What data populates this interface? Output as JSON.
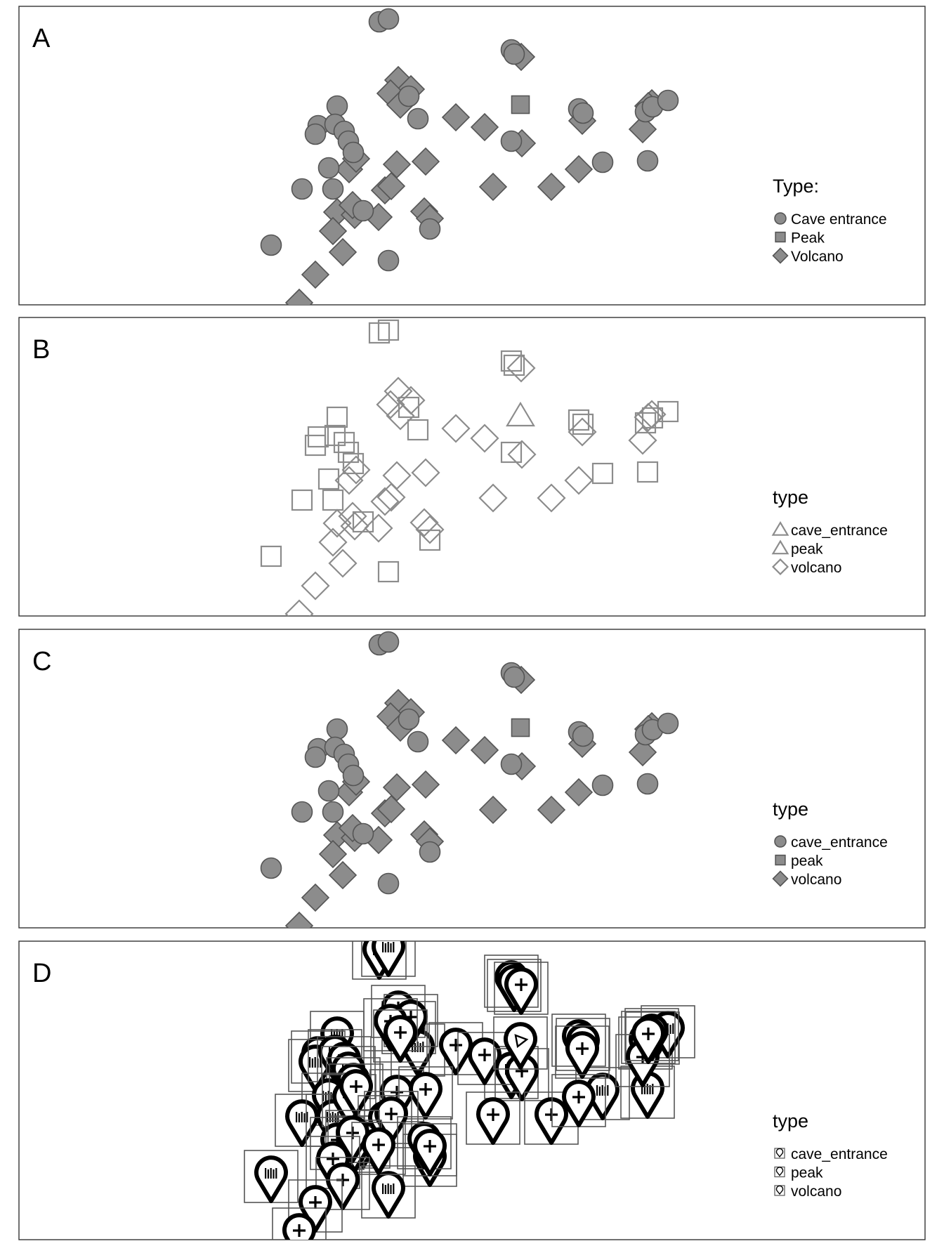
{
  "colors": {
    "fill": "#8c8c8c",
    "stroke": "#555555",
    "hollow_stroke": "#8c8c8c",
    "panel_border": "#333333",
    "pin": "#000000"
  },
  "chart_data": [
    {
      "panel_label": "A",
      "type": "scatter",
      "style": "filled",
      "legend": {
        "title": "Type:",
        "placement": "bottom-right",
        "entries": [
          {
            "label": "Cave entrance",
            "shape": "circle"
          },
          {
            "label": "Peak",
            "shape": "square"
          },
          {
            "label": "Volcano",
            "shape": "diamond"
          }
        ]
      }
    },
    {
      "panel_label": "B",
      "type": "scatter",
      "style": "hollow",
      "legend": {
        "title": "type",
        "placement": "bottom-right",
        "entries": [
          {
            "label": "cave_entrance",
            "shape": "square"
          },
          {
            "label": "peak",
            "shape": "triangle"
          },
          {
            "label": "volcano",
            "shape": "diamond"
          }
        ]
      }
    },
    {
      "panel_label": "C",
      "type": "scatter",
      "style": "filled",
      "legend": {
        "title": "type",
        "placement": "bottom-right",
        "entries": [
          {
            "label": "cave_entrance",
            "shape": "circle"
          },
          {
            "label": "peak",
            "shape": "square"
          },
          {
            "label": "volcano",
            "shape": "diamond"
          }
        ]
      }
    },
    {
      "panel_label": "D",
      "type": "scatter",
      "style": "icon",
      "legend": {
        "title": "type",
        "placement": "bottom-right",
        "entries": [
          {
            "label": "cave_entrance",
            "shape": "icon"
          },
          {
            "label": "peak",
            "shape": "icon"
          },
          {
            "label": "volcano",
            "shape": "icon"
          }
        ]
      }
    }
  ],
  "points": {
    "cave_entrance": [
      [
        540,
        22
      ],
      [
        553,
        18
      ],
      [
        728,
        62
      ],
      [
        732,
        68
      ],
      [
        480,
        142
      ],
      [
        582,
        128
      ],
      [
        595,
        160
      ],
      [
        453,
        170
      ],
      [
        449,
        182
      ],
      [
        477,
        168
      ],
      [
        490,
        178
      ],
      [
        496,
        192
      ],
      [
        503,
        208
      ],
      [
        824,
        146
      ],
      [
        830,
        152
      ],
      [
        919,
        150
      ],
      [
        929,
        143
      ],
      [
        951,
        134
      ],
      [
        728,
        192
      ],
      [
        468,
        230
      ],
      [
        430,
        260
      ],
      [
        474,
        260
      ],
      [
        517,
        291
      ],
      [
        612,
        317
      ],
      [
        386,
        340
      ],
      [
        553,
        362
      ],
      [
        858,
        222
      ],
      [
        922,
        220
      ]
    ],
    "peak": [
      [
        741,
        140
      ]
    ],
    "volcano": [
      [
        567,
        105
      ],
      [
        585,
        118
      ],
      [
        556,
        124
      ],
      [
        570,
        140
      ],
      [
        649,
        158
      ],
      [
        690,
        172
      ],
      [
        742,
        72
      ],
      [
        743,
        195
      ],
      [
        829,
        163
      ],
      [
        915,
        175
      ],
      [
        928,
        138
      ],
      [
        923,
        142
      ],
      [
        565,
        225
      ],
      [
        606,
        221
      ],
      [
        497,
        232
      ],
      [
        507,
        217
      ],
      [
        548,
        262
      ],
      [
        557,
        256
      ],
      [
        702,
        257
      ],
      [
        785,
        257
      ],
      [
        824,
        232
      ],
      [
        480,
        293
      ],
      [
        505,
        297
      ],
      [
        502,
        283
      ],
      [
        539,
        300
      ],
      [
        474,
        320
      ],
      [
        604,
        292
      ],
      [
        612,
        302
      ],
      [
        488,
        350
      ],
      [
        449,
        382
      ],
      [
        426,
        422
      ]
    ]
  }
}
